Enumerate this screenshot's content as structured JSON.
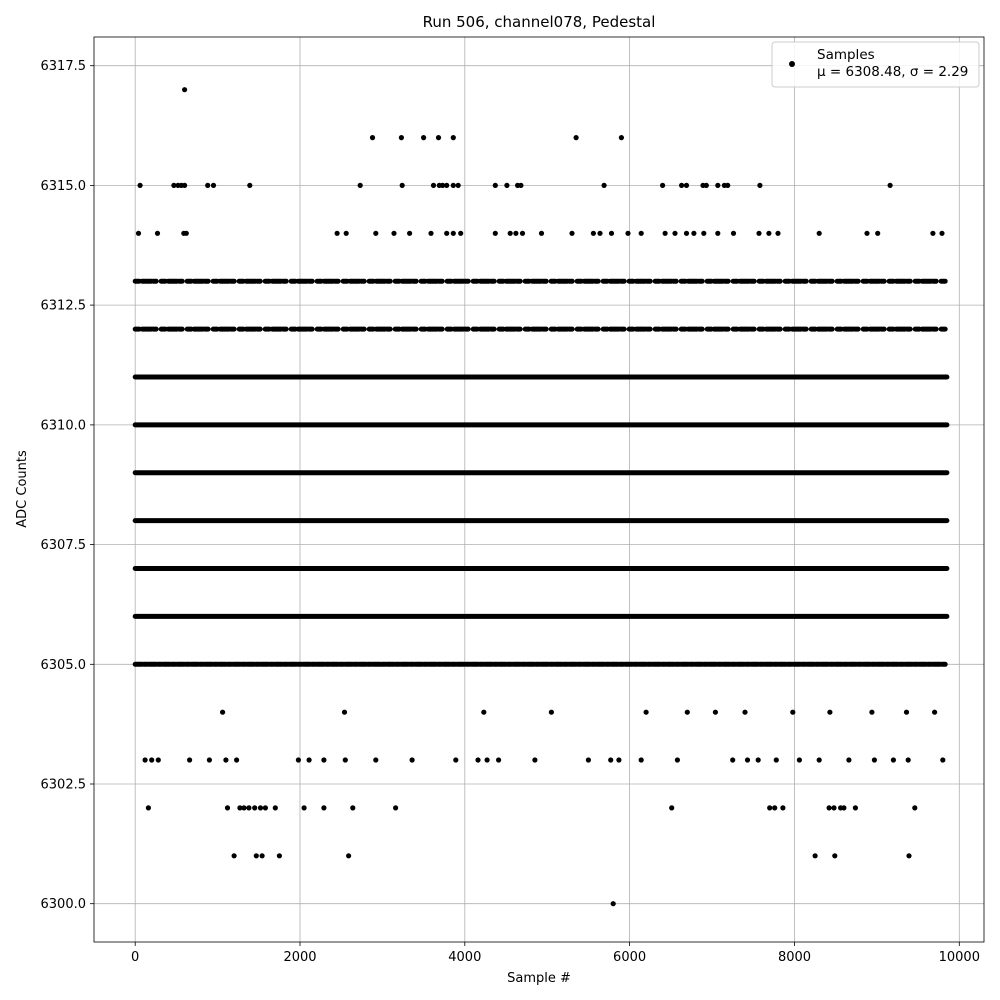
{
  "chart_data": {
    "type": "scatter",
    "title": "Run 506, channel078, Pedestal",
    "xlabel": "Sample #",
    "ylabel": "ADC Counts",
    "xlim": [
      -500,
      10300
    ],
    "ylim": [
      6299.2,
      6318.1
    ],
    "x_ticks": [
      0,
      2000,
      4000,
      6000,
      8000,
      10000
    ],
    "y_ticks": [
      6300.0,
      6302.5,
      6305.0,
      6307.5,
      6310.0,
      6312.5,
      6315.0,
      6317.5
    ],
    "x_tick_labels": [
      "0",
      "2000",
      "4000",
      "6000",
      "8000",
      "10000"
    ],
    "y_tick_labels": [
      "6300.0",
      "6302.5",
      "6305.0",
      "6307.5",
      "6310.0",
      "6312.5",
      "6315.0",
      "6317.5"
    ],
    "grid": true,
    "legend_position": "top-right",
    "marker_color": "#000000",
    "legend": {
      "label": "Samples",
      "stats": "μ = 6308.48, σ = 2.29"
    },
    "sample_count_approx": 9850,
    "mean": 6308.48,
    "std": 2.29,
    "points": [
      [
        600,
        6317
      ],
      [
        2880,
        6316
      ],
      [
        3230,
        6316
      ],
      [
        3500,
        6316
      ],
      [
        3680,
        6316
      ],
      [
        3860,
        6316
      ],
      [
        5350,
        6316
      ],
      [
        5900,
        6316
      ],
      [
        60,
        6315
      ],
      [
        470,
        6315
      ],
      [
        520,
        6315
      ],
      [
        560,
        6315
      ],
      [
        600,
        6315
      ],
      [
        880,
        6315
      ],
      [
        950,
        6315
      ],
      [
        1390,
        6315
      ],
      [
        2730,
        6315
      ],
      [
        3240,
        6315
      ],
      [
        3620,
        6315
      ],
      [
        3690,
        6315
      ],
      [
        3730,
        6315
      ],
      [
        3780,
        6315
      ],
      [
        3860,
        6315
      ],
      [
        3920,
        6315
      ],
      [
        4370,
        6315
      ],
      [
        4510,
        6315
      ],
      [
        4640,
        6315
      ],
      [
        4680,
        6315
      ],
      [
        5690,
        6315
      ],
      [
        6400,
        6315
      ],
      [
        6630,
        6315
      ],
      [
        6690,
        6315
      ],
      [
        6890,
        6315
      ],
      [
        6930,
        6315
      ],
      [
        7070,
        6315
      ],
      [
        7150,
        6315
      ],
      [
        7190,
        6315
      ],
      [
        7580,
        6315
      ],
      [
        9160,
        6315
      ],
      [
        40,
        6314
      ],
      [
        270,
        6314
      ],
      [
        590,
        6314
      ],
      [
        620,
        6314
      ],
      [
        2450,
        6314
      ],
      [
        2560,
        6314
      ],
      [
        2920,
        6314
      ],
      [
        3140,
        6314
      ],
      [
        3330,
        6314
      ],
      [
        3590,
        6314
      ],
      [
        3780,
        6314
      ],
      [
        3860,
        6314
      ],
      [
        3950,
        6314
      ],
      [
        4370,
        6314
      ],
      [
        4550,
        6314
      ],
      [
        4620,
        6314
      ],
      [
        4700,
        6314
      ],
      [
        4930,
        6314
      ],
      [
        5300,
        6314
      ],
      [
        5560,
        6314
      ],
      [
        5640,
        6314
      ],
      [
        5780,
        6314
      ],
      [
        5980,
        6314
      ],
      [
        6140,
        6314
      ],
      [
        6430,
        6314
      ],
      [
        6550,
        6314
      ],
      [
        6690,
        6314
      ],
      [
        6780,
        6314
      ],
      [
        6900,
        6314
      ],
      [
        7070,
        6314
      ],
      [
        7260,
        6314
      ],
      [
        7570,
        6314
      ],
      [
        7690,
        6314
      ],
      [
        7800,
        6314
      ],
      [
        8300,
        6314
      ],
      [
        8880,
        6314
      ],
      [
        9010,
        6314
      ],
      [
        9680,
        6314
      ],
      [
        9790,
        6314
      ],
      [
        1060,
        6304
      ],
      [
        2540,
        6304
      ],
      [
        4230,
        6304
      ],
      [
        5050,
        6304
      ],
      [
        6200,
        6304
      ],
      [
        6700,
        6304
      ],
      [
        7040,
        6304
      ],
      [
        7400,
        6304
      ],
      [
        7980,
        6304
      ],
      [
        8430,
        6304
      ],
      [
        8940,
        6304
      ],
      [
        9360,
        6304
      ],
      [
        9700,
        6304
      ],
      [
        120,
        6303
      ],
      [
        200,
        6303
      ],
      [
        280,
        6303
      ],
      [
        660,
        6303
      ],
      [
        900,
        6303
      ],
      [
        1100,
        6303
      ],
      [
        1230,
        6303
      ],
      [
        1980,
        6303
      ],
      [
        2110,
        6303
      ],
      [
        2290,
        6303
      ],
      [
        2550,
        6303
      ],
      [
        2920,
        6303
      ],
      [
        3360,
        6303
      ],
      [
        3890,
        6303
      ],
      [
        4160,
        6303
      ],
      [
        4270,
        6303
      ],
      [
        4410,
        6303
      ],
      [
        4850,
        6303
      ],
      [
        5500,
        6303
      ],
      [
        5770,
        6303
      ],
      [
        5870,
        6303
      ],
      [
        6140,
        6303
      ],
      [
        6580,
        6303
      ],
      [
        7250,
        6303
      ],
      [
        7430,
        6303
      ],
      [
        7560,
        6303
      ],
      [
        7780,
        6303
      ],
      [
        8060,
        6303
      ],
      [
        8300,
        6303
      ],
      [
        8660,
        6303
      ],
      [
        8970,
        6303
      ],
      [
        9200,
        6303
      ],
      [
        9380,
        6303
      ],
      [
        9800,
        6303
      ],
      [
        160,
        6302
      ],
      [
        1120,
        6302
      ],
      [
        1270,
        6302
      ],
      [
        1320,
        6302
      ],
      [
        1380,
        6302
      ],
      [
        1450,
        6302
      ],
      [
        1520,
        6302
      ],
      [
        1580,
        6302
      ],
      [
        1700,
        6302
      ],
      [
        2050,
        6302
      ],
      [
        2290,
        6302
      ],
      [
        2640,
        6302
      ],
      [
        3160,
        6302
      ],
      [
        6510,
        6302
      ],
      [
        7700,
        6302
      ],
      [
        7760,
        6302
      ],
      [
        7860,
        6302
      ],
      [
        8420,
        6302
      ],
      [
        8480,
        6302
      ],
      [
        8560,
        6302
      ],
      [
        8600,
        6302
      ],
      [
        8740,
        6302
      ],
      [
        9460,
        6302
      ],
      [
        1200,
        6301
      ],
      [
        1470,
        6301
      ],
      [
        1540,
        6301
      ],
      [
        1750,
        6301
      ],
      [
        2590,
        6301
      ],
      [
        8250,
        6301
      ],
      [
        8490,
        6301
      ],
      [
        9390,
        6301
      ],
      [
        5800,
        6300
      ]
    ]
  }
}
